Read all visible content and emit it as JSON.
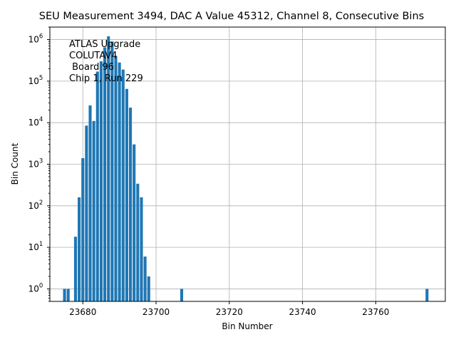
{
  "chart_data": {
    "type": "bar",
    "title": "SEU Measurement 3494, DAC A Value 45312, Channel 8, Consecutive Bins",
    "xlabel": "Bin Number",
    "ylabel": "Bin Count",
    "xlim": [
      23671,
      23779
    ],
    "ylim": [
      0.5,
      2000000
    ],
    "yscale": "log",
    "grid": true,
    "color": "#1f77b4",
    "xticks": [
      23680,
      23700,
      23720,
      23740,
      23760
    ],
    "yticks": [
      {
        "value": 1,
        "exp": "0"
      },
      {
        "value": 10,
        "exp": "1"
      },
      {
        "value": 100,
        "exp": "2"
      },
      {
        "value": 1000,
        "exp": "3"
      },
      {
        "value": 10000,
        "exp": "4"
      },
      {
        "value": 100000,
        "exp": "5"
      },
      {
        "value": 1000000,
        "exp": "6"
      }
    ],
    "annotation": [
      "ATLAS Upgrade",
      "COLUTAV4",
      " Board 96",
      "Chip 1, Run 229"
    ],
    "bins": [
      {
        "x": 23675,
        "y": 1
      },
      {
        "x": 23676,
        "y": 1
      },
      {
        "x": 23678,
        "y": 18
      },
      {
        "x": 23679,
        "y": 160
      },
      {
        "x": 23680,
        "y": 1400
      },
      {
        "x": 23681,
        "y": 8500
      },
      {
        "x": 23682,
        "y": 26000
      },
      {
        "x": 23683,
        "y": 11000
      },
      {
        "x": 23684,
        "y": 170000
      },
      {
        "x": 23685,
        "y": 300000
      },
      {
        "x": 23686,
        "y": 650000
      },
      {
        "x": 23687,
        "y": 1200000
      },
      {
        "x": 23688,
        "y": 900000
      },
      {
        "x": 23689,
        "y": 400000
      },
      {
        "x": 23690,
        "y": 280000
      },
      {
        "x": 23691,
        "y": 190000
      },
      {
        "x": 23692,
        "y": 65000
      },
      {
        "x": 23693,
        "y": 23000
      },
      {
        "x": 23694,
        "y": 3000
      },
      {
        "x": 23695,
        "y": 340
      },
      {
        "x": 23696,
        "y": 160
      },
      {
        "x": 23697,
        "y": 6
      },
      {
        "x": 23698,
        "y": 2
      },
      {
        "x": 23707,
        "y": 1
      },
      {
        "x": 23774,
        "y": 1
      }
    ]
  }
}
